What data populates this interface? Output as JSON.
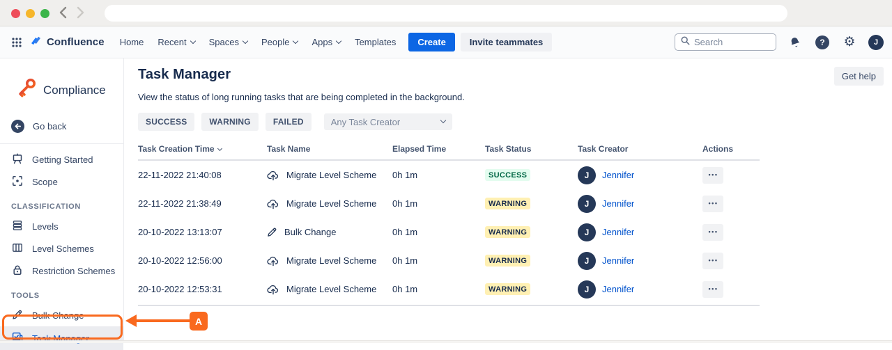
{
  "nav": {
    "product": "Confluence",
    "items": [
      {
        "label": "Home",
        "chevron": false
      },
      {
        "label": "Recent",
        "chevron": true
      },
      {
        "label": "Spaces",
        "chevron": true
      },
      {
        "label": "People",
        "chevron": true
      },
      {
        "label": "Apps",
        "chevron": true
      },
      {
        "label": "Templates",
        "chevron": false
      }
    ],
    "create_label": "Create",
    "invite_label": "Invite teammates",
    "search_placeholder": "Search",
    "help_glyph": "?",
    "gear_glyph": "⚙",
    "avatar_initial": "J"
  },
  "sidebar": {
    "app_name": "Compliance",
    "back_label": "Go back",
    "section_classification": "CLASSIFICATION",
    "section_tools": "TOOLS",
    "items": {
      "getting_started": "Getting Started",
      "scope": "Scope",
      "levels": "Levels",
      "level_schemes": "Level Schemes",
      "restriction_schemes": "Restriction Schemes",
      "bulk_change": "Bulk Change",
      "task_manager": "Task Manager"
    }
  },
  "main": {
    "title": "Task Manager",
    "description": "View the status of long running tasks that are being completed in the background.",
    "get_help_label": "Get help",
    "filters": [
      "SUCCESS",
      "WARNING",
      "FAILED"
    ],
    "creator_filter_placeholder": "Any Task Creator"
  },
  "table": {
    "headers": [
      {
        "label": "Task Creation Time",
        "sort": true
      },
      {
        "label": "Task Name",
        "sort": false
      },
      {
        "label": "Elapsed Time",
        "sort": false
      },
      {
        "label": "Task Status",
        "sort": false
      },
      {
        "label": "Task Creator",
        "sort": false
      },
      {
        "label": "Actions",
        "sort": false
      }
    ],
    "rows": [
      {
        "creation_time": "22-11-2022 21:40:08",
        "task_name": "Migrate Level Scheme",
        "task_icon": "cloud-upload-icon",
        "elapsed": "0h 1m",
        "status": "SUCCESS",
        "creator": "Jennifer",
        "creator_initial": "J",
        "actions_glyph": "•••"
      },
      {
        "creation_time": "22-11-2022 21:38:49",
        "task_name": "Migrate Level Scheme",
        "task_icon": "cloud-upload-icon",
        "elapsed": "0h 1m",
        "status": "WARNING",
        "creator": "Jennifer",
        "creator_initial": "J",
        "actions_glyph": "•••"
      },
      {
        "creation_time": "20-10-2022 13:13:07",
        "task_name": "Bulk Change",
        "task_icon": "pencil-icon",
        "elapsed": "0h 1m",
        "status": "WARNING",
        "creator": "Jennifer",
        "creator_initial": "J",
        "actions_glyph": "•••"
      },
      {
        "creation_time": "20-10-2022 12:56:00",
        "task_name": "Migrate Level Scheme",
        "task_icon": "cloud-upload-icon",
        "elapsed": "0h 1m",
        "status": "WARNING",
        "creator": "Jennifer",
        "creator_initial": "J",
        "actions_glyph": "•••"
      },
      {
        "creation_time": "20-10-2022 12:53:31",
        "task_name": "Migrate Level Scheme",
        "task_icon": "cloud-upload-icon",
        "elapsed": "0h 1m",
        "status": "WARNING",
        "creator": "Jennifer",
        "creator_initial": "J",
        "actions_glyph": "•••"
      }
    ]
  },
  "annotation": {
    "label": "A"
  },
  "colors": {
    "accent_blue": "#0052CC",
    "create_blue": "#0C66E4",
    "success_bg": "#E3FCEF",
    "success_text": "#006644",
    "warning_bg": "#FFF0B3",
    "annotation_orange": "#F9691E",
    "navy_text": "#172B4D"
  }
}
